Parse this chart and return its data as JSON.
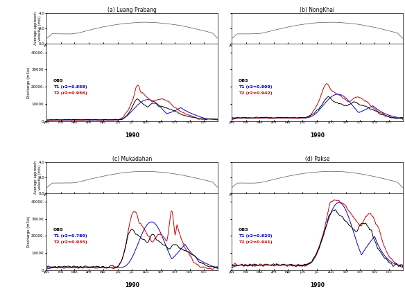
{
  "titles": [
    "(a) Luang Prabang",
    "(b) NongKhai",
    "(c) Mukadahan",
    "(d) Pakse"
  ],
  "months": [
    "JAN",
    "FEB",
    "MAR",
    "APR",
    "MAY",
    "JUN",
    "JUL",
    "AUG",
    "SEP",
    "OCT",
    "NOV",
    "DEC"
  ],
  "year_label": "1990",
  "velocity_ylim": [
    0.0,
    4.0
  ],
  "velocity_yticks": [
    0.0,
    2.0,
    4.0
  ],
  "velocity_ytick_labels": [
    "0.0",
    "2.0",
    "4.0"
  ],
  "discharge_ylim": [
    0,
    45000
  ],
  "discharge_yticks": [
    0,
    10000,
    20000,
    30000,
    40000
  ],
  "discharge_ytick_labels": [
    "0.",
    "10000.",
    "20000.",
    "30000.",
    "40000."
  ],
  "legends": [
    {
      "obs": "OBS",
      "t1": "T1 (r2=0.858)",
      "t2": "T2 (r2=0.956)"
    },
    {
      "obs": "OBS",
      "t1": "T1 (r2=0.809)",
      "t2": "T2 (r2=0.942)"
    },
    {
      "obs": "OBS",
      "t1": "T1 (r2=0.789)",
      "t2": "T2 (r2=0.935)"
    },
    {
      "obs": "OBS",
      "t1": "T1 (r2=0.820)",
      "t2": "T2 (r2=0.941)"
    }
  ],
  "colors": {
    "obs": "#000000",
    "t1": "#0000cc",
    "t2": "#cc0000",
    "velocity": "#555555"
  },
  "background": "#ffffff",
  "ylabel_velocity": "Average approach\nvelocity (m/s)",
  "ylabel_discharge": "Discharge (m3/s)"
}
